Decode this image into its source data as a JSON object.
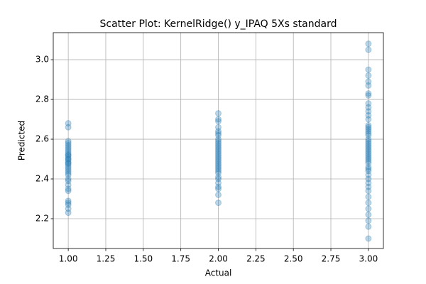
{
  "chart_data": {
    "type": "scatter",
    "title": "Scatter Plot: KernelRidge() y_IPAQ 5Xs standard",
    "x_label": "Actual",
    "y_label": "Predicted",
    "color": "#1f77b4",
    "grid": true,
    "xlim": [
      0.9,
      3.1
    ],
    "xticks": [
      {
        "value": 1,
        "label": "1.00"
      },
      {
        "value": 1.25,
        "label": "1.25"
      },
      {
        "value": 1.5,
        "label": "1.50"
      },
      {
        "value": 1.75,
        "label": "1.75"
      },
      {
        "value": 2,
        "label": "2.00"
      },
      {
        "value": 2.25,
        "label": "2.25"
      },
      {
        "value": 2.5,
        "label": "2.50"
      },
      {
        "value": 2.75,
        "label": "2.75"
      },
      {
        "value": 3,
        "label": "3.00"
      }
    ],
    "ylim": [
      2.05,
      3.136
    ],
    "yticks": [
      2.2,
      2.4,
      2.6,
      2.8,
      {
        "value": 3,
        "label": "3.0"
      }
    ],
    "x": [
      1,
      1,
      1,
      1,
      1,
      1,
      1,
      1,
      1,
      1,
      1,
      1,
      1,
      1,
      1,
      1,
      1,
      1,
      1,
      1,
      1,
      1,
      1,
      1,
      1,
      1,
      1,
      1,
      1,
      1,
      1,
      1,
      1,
      2,
      2,
      2,
      2,
      2,
      2,
      2,
      2,
      2,
      2,
      2,
      2,
      2,
      2,
      2,
      2,
      2,
      2,
      2,
      2,
      2,
      2,
      2,
      2,
      2,
      2,
      2,
      2,
      2,
      2,
      2,
      2,
      3,
      3,
      3,
      3,
      3,
      3,
      3,
      3,
      3,
      3,
      3,
      3,
      3,
      3,
      3,
      3,
      3,
      3,
      3,
      3,
      3,
      3,
      3,
      3,
      3,
      3,
      3,
      3,
      3,
      3,
      3,
      3,
      3,
      3,
      3,
      3,
      3,
      3,
      3,
      3,
      3,
      3,
      3,
      3,
      3,
      3,
      3
    ],
    "values": [
      2.23,
      2.25,
      2.27,
      2.28,
      2.29,
      2.34,
      2.35,
      2.37,
      2.39,
      2.4,
      2.42,
      2.43,
      2.44,
      2.45,
      2.46,
      2.47,
      2.48,
      2.48,
      2.49,
      2.5,
      2.5,
      2.51,
      2.52,
      2.52,
      2.53,
      2.54,
      2.55,
      2.56,
      2.57,
      2.58,
      2.59,
      2.66,
      2.68,
      2.28,
      2.32,
      2.35,
      2.36,
      2.38,
      2.4,
      2.41,
      2.43,
      2.44,
      2.45,
      2.46,
      2.47,
      2.48,
      2.49,
      2.5,
      2.51,
      2.52,
      2.53,
      2.54,
      2.55,
      2.56,
      2.57,
      2.58,
      2.59,
      2.6,
      2.62,
      2.63,
      2.64,
      2.66,
      2.69,
      2.7,
      2.73,
      2.1,
      2.16,
      2.19,
      2.22,
      2.25,
      2.28,
      2.31,
      2.34,
      2.36,
      2.38,
      2.4,
      2.42,
      2.44,
      2.45,
      2.46,
      2.48,
      2.49,
      2.5,
      2.51,
      2.52,
      2.53,
      2.54,
      2.55,
      2.56,
      2.57,
      2.58,
      2.59,
      2.6,
      2.62,
      2.63,
      2.64,
      2.65,
      2.66,
      2.67,
      2.7,
      2.72,
      2.74,
      2.76,
      2.78,
      2.82,
      2.83,
      2.87,
      2.89,
      2.92,
      2.95,
      3.05,
      3.08
    ]
  }
}
